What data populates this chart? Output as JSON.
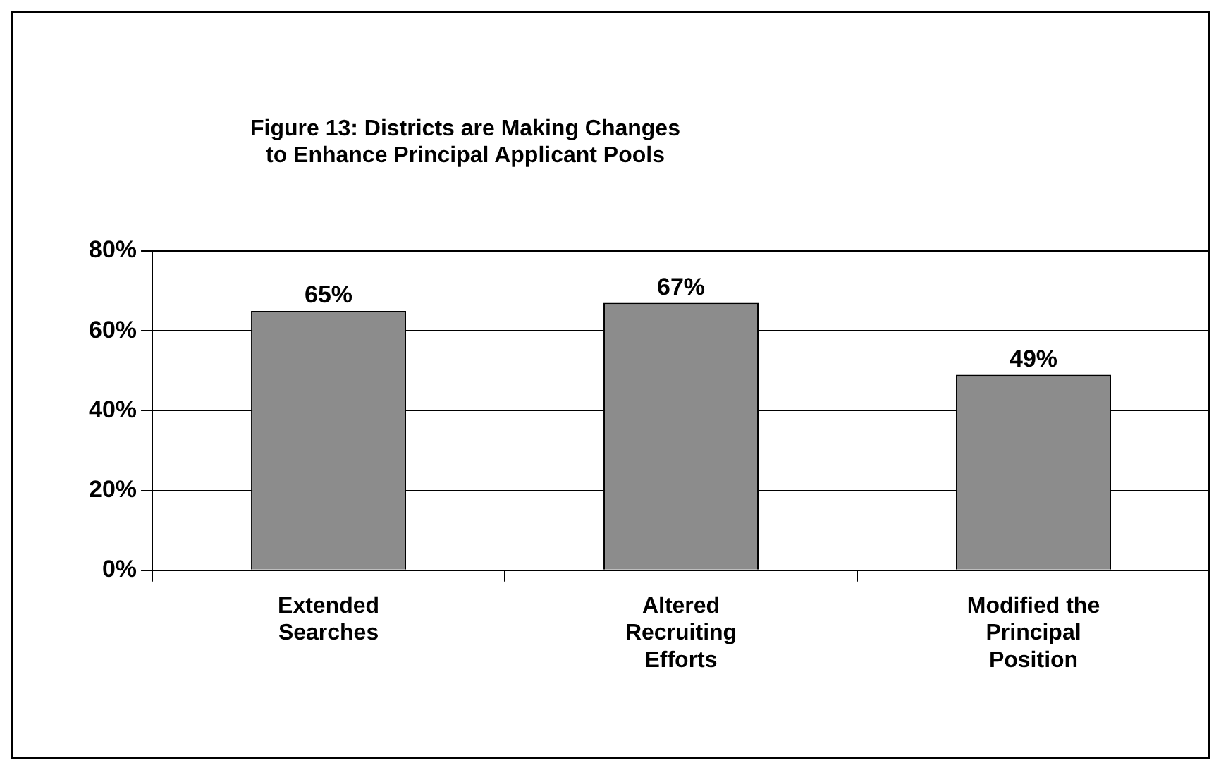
{
  "chart_data": {
    "type": "bar",
    "title": "Figure 13: Districts are Making Changes to Enhance Principal Applicant Pools",
    "categories": [
      "Extended Searches",
      "Altered Recruiting Efforts",
      "Modified the Principal Position"
    ],
    "values": [
      65,
      67,
      49
    ],
    "color": "#8c8c8c",
    "value_labels": [
      "65%",
      "67%",
      "49%"
    ],
    "ylim": [
      0,
      80
    ],
    "yticks": [
      {
        "value": 0,
        "label": "0%"
      },
      {
        "value": 20,
        "label": "20%"
      },
      {
        "value": 40,
        "label": "40%"
      },
      {
        "value": 60,
        "label": "60%"
      },
      {
        "value": 80,
        "label": "80%"
      }
    ],
    "grid": "y",
    "legend": false
  }
}
